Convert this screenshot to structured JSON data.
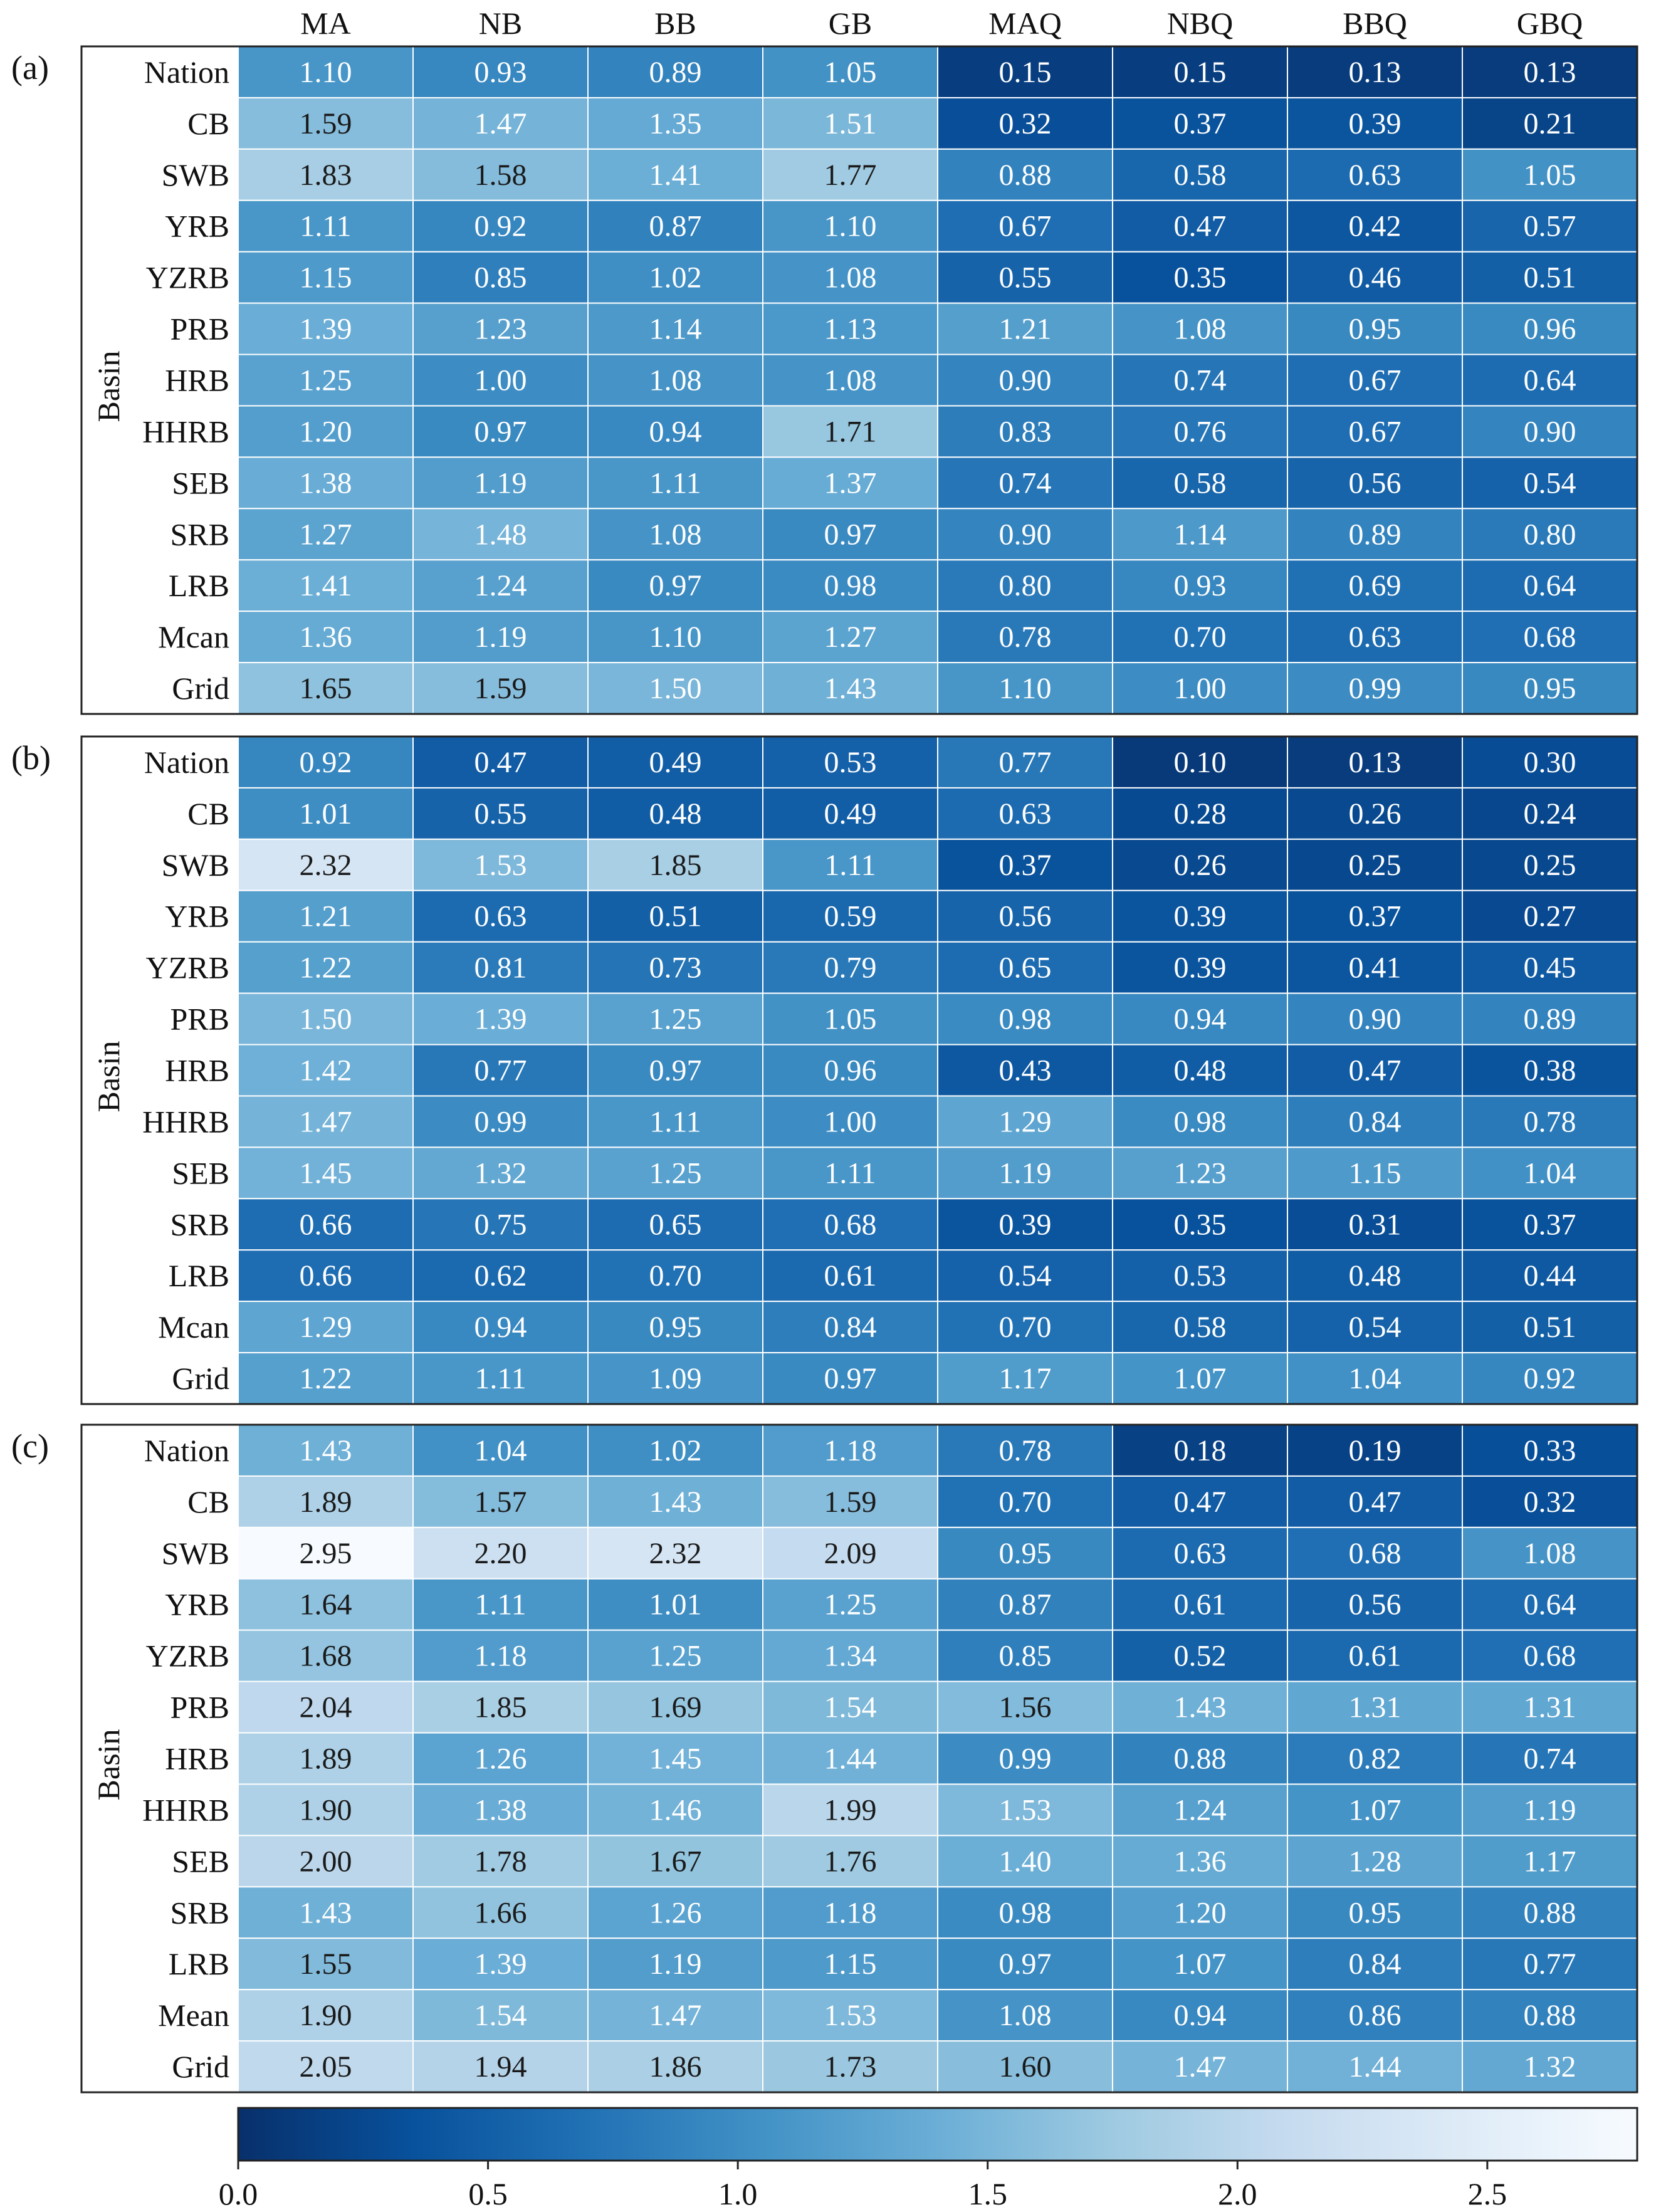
{
  "chart_data": {
    "type": "heatmap",
    "columns": [
      "MA",
      "NB",
      "BB",
      "GB",
      "MAQ",
      "NBQ",
      "BBQ",
      "GBQ"
    ],
    "rows": [
      "Nation",
      "CB",
      "SWB",
      "YRB",
      "YZRB",
      "PRB",
      "HRB",
      "HHRB",
      "SEB",
      "SRB",
      "LRB",
      "Mcan",
      "Grid"
    ],
    "ylabel": "Basin",
    "colormap": {
      "name": "Blues_r",
      "stops": [
        "#08306b",
        "#08519c",
        "#2171b5",
        "#4292c6",
        "#6baed6",
        "#9ecae1",
        "#c6dbef",
        "#deebf7",
        "#f7fbff"
      ],
      "range": [
        0.0,
        2.8
      ],
      "ticks": [
        0.0,
        0.5,
        1.0,
        1.5,
        2.0,
        2.5
      ],
      "tick_labels": [
        "0.0",
        "0.5",
        "1.0",
        "1.5",
        "2.0",
        "2.5"
      ]
    },
    "panels": [
      {
        "label": "(a)",
        "rows": [
          "Nation",
          "CB",
          "SWB",
          "YRB",
          "YZRB",
          "PRB",
          "HRB",
          "HHRB",
          "SEB",
          "SRB",
          "LRB",
          "Mcan",
          "Grid"
        ],
        "values": [
          [
            1.1,
            0.93,
            0.89,
            1.05,
            0.15,
            0.15,
            0.13,
            0.13
          ],
          [
            1.59,
            1.47,
            1.35,
            1.51,
            0.32,
            0.37,
            0.39,
            0.21
          ],
          [
            1.83,
            1.58,
            1.41,
            1.77,
            0.88,
            0.58,
            0.63,
            1.05
          ],
          [
            1.11,
            0.92,
            0.87,
            1.1,
            0.67,
            0.47,
            0.42,
            0.57
          ],
          [
            1.15,
            0.85,
            1.02,
            1.08,
            0.55,
            0.35,
            0.46,
            0.51
          ],
          [
            1.39,
            1.23,
            1.14,
            1.13,
            1.21,
            1.08,
            0.95,
            0.96
          ],
          [
            1.25,
            1.0,
            1.08,
            1.08,
            0.9,
            0.74,
            0.67,
            0.64
          ],
          [
            1.2,
            0.97,
            0.94,
            1.71,
            0.83,
            0.76,
            0.67,
            0.9
          ],
          [
            1.38,
            1.19,
            1.11,
            1.37,
            0.74,
            0.58,
            0.56,
            0.54
          ],
          [
            1.27,
            1.48,
            1.08,
            0.97,
            0.9,
            1.14,
            0.89,
            0.8
          ],
          [
            1.41,
            1.24,
            0.97,
            0.98,
            0.8,
            0.93,
            0.69,
            0.64
          ],
          [
            1.36,
            1.19,
            1.1,
            1.27,
            0.78,
            0.7,
            0.63,
            0.68
          ],
          [
            1.65,
            1.59,
            1.5,
            1.43,
            1.1,
            1.0,
            0.99,
            0.95
          ]
        ]
      },
      {
        "label": "(b)",
        "rows": [
          "Nation",
          "CB",
          "SWB",
          "YRB",
          "YZRB",
          "PRB",
          "HRB",
          "HHRB",
          "SEB",
          "SRB",
          "LRB",
          "Mcan",
          "Grid"
        ],
        "values": [
          [
            0.92,
            0.47,
            0.49,
            0.53,
            0.77,
            0.1,
            0.13,
            0.3
          ],
          [
            1.01,
            0.55,
            0.48,
            0.49,
            0.63,
            0.28,
            0.26,
            0.24
          ],
          [
            2.32,
            1.53,
            1.85,
            1.11,
            0.37,
            0.26,
            0.25,
            0.25
          ],
          [
            1.21,
            0.63,
            0.51,
            0.59,
            0.56,
            0.39,
            0.37,
            0.27
          ],
          [
            1.22,
            0.81,
            0.73,
            0.79,
            0.65,
            0.39,
            0.41,
            0.45
          ],
          [
            1.5,
            1.39,
            1.25,
            1.05,
            0.98,
            0.94,
            0.9,
            0.89
          ],
          [
            1.42,
            0.77,
            0.97,
            0.96,
            0.43,
            0.48,
            0.47,
            0.38
          ],
          [
            1.47,
            0.99,
            1.11,
            1.0,
            1.29,
            0.98,
            0.84,
            0.78
          ],
          [
            1.45,
            1.32,
            1.25,
            1.11,
            1.19,
            1.23,
            1.15,
            1.04
          ],
          [
            0.66,
            0.75,
            0.65,
            0.68,
            0.39,
            0.35,
            0.31,
            0.37
          ],
          [
            0.66,
            0.62,
            0.7,
            0.61,
            0.54,
            0.53,
            0.48,
            0.44
          ],
          [
            1.29,
            0.94,
            0.95,
            0.84,
            0.7,
            0.58,
            0.54,
            0.51
          ],
          [
            1.22,
            1.11,
            1.09,
            0.97,
            1.17,
            1.07,
            1.04,
            0.92
          ]
        ]
      },
      {
        "label": "(c)",
        "rows": [
          "Nation",
          "CB",
          "SWB",
          "YRB",
          "YZRB",
          "PRB",
          "HRB",
          "HHRB",
          "SEB",
          "SRB",
          "LRB",
          "Mean",
          "Grid"
        ],
        "values": [
          [
            1.43,
            1.04,
            1.02,
            1.18,
            0.78,
            0.18,
            0.19,
            0.33
          ],
          [
            1.89,
            1.57,
            1.43,
            1.59,
            0.7,
            0.47,
            0.47,
            0.32
          ],
          [
            2.95,
            2.2,
            2.32,
            2.09,
            0.95,
            0.63,
            0.68,
            1.08
          ],
          [
            1.64,
            1.11,
            1.01,
            1.25,
            0.87,
            0.61,
            0.56,
            0.64
          ],
          [
            1.68,
            1.18,
            1.25,
            1.34,
            0.85,
            0.52,
            0.61,
            0.68
          ],
          [
            2.04,
            1.85,
            1.69,
            1.54,
            1.56,
            1.43,
            1.31,
            1.31
          ],
          [
            1.89,
            1.26,
            1.45,
            1.44,
            0.99,
            0.88,
            0.82,
            0.74
          ],
          [
            1.9,
            1.38,
            1.46,
            1.99,
            1.53,
            1.24,
            1.07,
            1.19
          ],
          [
            2.0,
            1.78,
            1.67,
            1.76,
            1.4,
            1.36,
            1.28,
            1.17
          ],
          [
            1.43,
            1.66,
            1.26,
            1.18,
            0.98,
            1.2,
            0.95,
            0.88
          ],
          [
            1.55,
            1.39,
            1.19,
            1.15,
            0.97,
            1.07,
            0.84,
            0.77
          ],
          [
            1.9,
            1.54,
            1.47,
            1.53,
            1.08,
            0.94,
            0.86,
            0.88
          ],
          [
            2.05,
            1.94,
            1.86,
            1.73,
            1.6,
            1.47,
            1.44,
            1.32
          ]
        ]
      }
    ]
  }
}
